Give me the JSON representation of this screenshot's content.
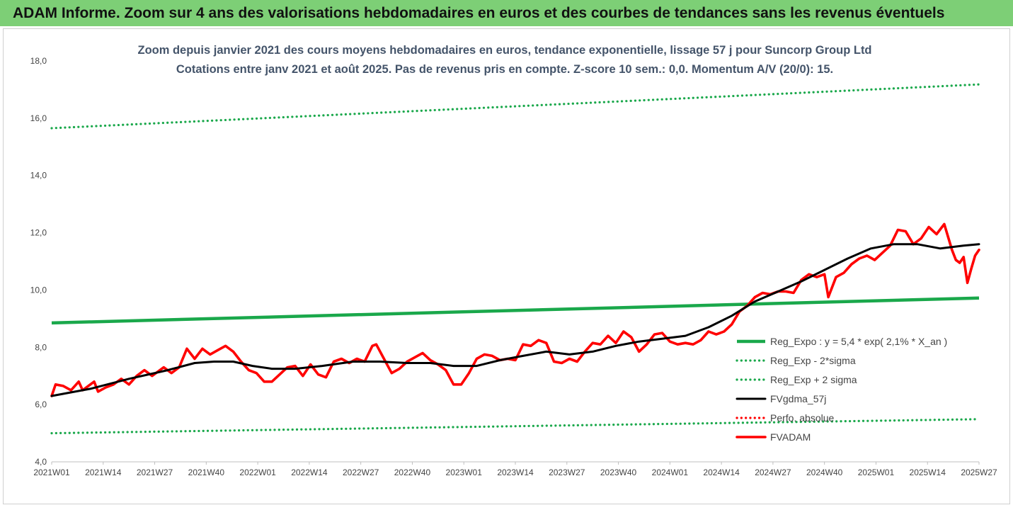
{
  "banner": {
    "text": "ADAM Informe. Zoom sur 4 ans des valorisations hebdomadaires en euros et des courbes de tendances sans les revenus éventuels"
  },
  "chart_data": {
    "type": "line",
    "title": "Zoom depuis janvier 2021 des cours moyens hebdomadaires en euros, tendance exponentielle, lissage 57 j pour Suncorp Group Ltd",
    "subtitle": "Cotations entre janv 2021 et août 2025.  Pas de revenus pris en compte. Z-score 10 sem.: 0,0. Momentum A/V (20/0): 15.",
    "xlabel": "",
    "ylabel": "",
    "ylim": [
      4.0,
      18.0
    ],
    "y_ticks": [
      "4,0",
      "6,0",
      "8,0",
      "10,0",
      "12,0",
      "14,0",
      "16,0",
      "18,0"
    ],
    "x_ticks": [
      "2021W01",
      "2021W14",
      "2021W27",
      "2021W40",
      "2022W01",
      "2022W14",
      "2022W27",
      "2022W40",
      "2023W01",
      "2023W14",
      "2023W27",
      "2023W40",
      "2024W01",
      "2024W14",
      "2024W27",
      "2024W40",
      "2025W01",
      "2025W14",
      "2025W27"
    ],
    "x_range_weeks": [
      0,
      240
    ],
    "grid": false,
    "legend_position": "right",
    "series": [
      {
        "name": "Reg_Expo : y = 5,4 * exp( 2,1% *  X_an )",
        "color": "#1aa84b",
        "style": "solid",
        "points": [
          [
            0,
            8.85
          ],
          [
            240,
            9.72
          ]
        ]
      },
      {
        "name": "Reg_Exp - 2*sigma",
        "color": "#1aa84b",
        "style": "dotted",
        "points": [
          [
            0,
            5.0
          ],
          [
            240,
            5.49
          ]
        ]
      },
      {
        "name": "Reg_Exp + 2 sigma",
        "color": "#1aa84b",
        "style": "dotted",
        "points": [
          [
            0,
            15.65
          ],
          [
            240,
            17.18
          ]
        ]
      },
      {
        "name": "FVgdma_57j",
        "color": "#000000",
        "style": "solid",
        "points": [
          [
            0,
            6.3
          ],
          [
            10,
            6.55
          ],
          [
            20,
            6.9
          ],
          [
            30,
            7.2
          ],
          [
            37,
            7.45
          ],
          [
            42,
            7.5
          ],
          [
            47,
            7.5
          ],
          [
            52,
            7.35
          ],
          [
            57,
            7.25
          ],
          [
            63,
            7.25
          ],
          [
            70,
            7.35
          ],
          [
            78,
            7.5
          ],
          [
            85,
            7.5
          ],
          [
            92,
            7.45
          ],
          [
            98,
            7.45
          ],
          [
            104,
            7.35
          ],
          [
            110,
            7.35
          ],
          [
            116,
            7.55
          ],
          [
            122,
            7.7
          ],
          [
            128,
            7.85
          ],
          [
            134,
            7.75
          ],
          [
            140,
            7.85
          ],
          [
            146,
            8.05
          ],
          [
            152,
            8.2
          ],
          [
            158,
            8.3
          ],
          [
            164,
            8.4
          ],
          [
            170,
            8.7
          ],
          [
            176,
            9.1
          ],
          [
            182,
            9.6
          ],
          [
            188,
            9.95
          ],
          [
            194,
            10.3
          ],
          [
            200,
            10.7
          ],
          [
            206,
            11.1
          ],
          [
            212,
            11.45
          ],
          [
            218,
            11.6
          ],
          [
            224,
            11.6
          ],
          [
            230,
            11.45
          ],
          [
            236,
            11.55
          ],
          [
            240,
            11.6
          ]
        ]
      },
      {
        "name": "Perfo. absolue",
        "color": "#ff0000",
        "style": "dotted",
        "points": []
      },
      {
        "name": "FVADAM",
        "color": "#ff0000",
        "style": "solid",
        "points": [
          [
            0,
            6.3
          ],
          [
            1,
            6.7
          ],
          [
            3,
            6.65
          ],
          [
            5,
            6.5
          ],
          [
            7,
            6.8
          ],
          [
            8,
            6.5
          ],
          [
            11,
            6.8
          ],
          [
            12,
            6.45
          ],
          [
            14,
            6.6
          ],
          [
            16,
            6.7
          ],
          [
            18,
            6.9
          ],
          [
            20,
            6.7
          ],
          [
            22,
            7.0
          ],
          [
            24,
            7.2
          ],
          [
            26,
            7.0
          ],
          [
            29,
            7.3
          ],
          [
            31,
            7.1
          ],
          [
            33,
            7.3
          ],
          [
            35,
            7.95
          ],
          [
            37,
            7.6
          ],
          [
            39,
            7.95
          ],
          [
            41,
            7.75
          ],
          [
            43,
            7.9
          ],
          [
            45,
            8.05
          ],
          [
            47,
            7.85
          ],
          [
            49,
            7.5
          ],
          [
            51,
            7.2
          ],
          [
            53,
            7.1
          ],
          [
            55,
            6.8
          ],
          [
            57,
            6.8
          ],
          [
            59,
            7.05
          ],
          [
            61,
            7.3
          ],
          [
            63,
            7.35
          ],
          [
            65,
            7.0
          ],
          [
            67,
            7.4
          ],
          [
            69,
            7.05
          ],
          [
            71,
            6.95
          ],
          [
            73,
            7.5
          ],
          [
            75,
            7.6
          ],
          [
            77,
            7.45
          ],
          [
            79,
            7.6
          ],
          [
            81,
            7.5
          ],
          [
            83,
            8.05
          ],
          [
            84,
            8.1
          ],
          [
            86,
            7.6
          ],
          [
            88,
            7.1
          ],
          [
            90,
            7.25
          ],
          [
            92,
            7.5
          ],
          [
            94,
            7.65
          ],
          [
            96,
            7.8
          ],
          [
            98,
            7.55
          ],
          [
            100,
            7.4
          ],
          [
            102,
            7.2
          ],
          [
            104,
            6.7
          ],
          [
            106,
            6.7
          ],
          [
            108,
            7.1
          ],
          [
            110,
            7.6
          ],
          [
            112,
            7.75
          ],
          [
            114,
            7.7
          ],
          [
            116,
            7.55
          ],
          [
            118,
            7.6
          ],
          [
            120,
            7.55
          ],
          [
            122,
            8.1
          ],
          [
            124,
            8.05
          ],
          [
            126,
            8.25
          ],
          [
            128,
            8.15
          ],
          [
            130,
            7.5
          ],
          [
            132,
            7.45
          ],
          [
            134,
            7.6
          ],
          [
            136,
            7.5
          ],
          [
            138,
            7.85
          ],
          [
            140,
            8.15
          ],
          [
            142,
            8.1
          ],
          [
            144,
            8.4
          ],
          [
            146,
            8.15
          ],
          [
            148,
            8.55
          ],
          [
            150,
            8.35
          ],
          [
            152,
            7.85
          ],
          [
            154,
            8.1
          ],
          [
            156,
            8.45
          ],
          [
            158,
            8.5
          ],
          [
            160,
            8.2
          ],
          [
            162,
            8.1
          ],
          [
            164,
            8.15
          ],
          [
            166,
            8.1
          ],
          [
            168,
            8.25
          ],
          [
            170,
            8.55
          ],
          [
            172,
            8.45
          ],
          [
            174,
            8.55
          ],
          [
            176,
            8.8
          ],
          [
            178,
            9.25
          ],
          [
            180,
            9.45
          ],
          [
            182,
            9.75
          ],
          [
            184,
            9.9
          ],
          [
            186,
            9.85
          ],
          [
            188,
            9.95
          ],
          [
            190,
            9.95
          ],
          [
            192,
            9.9
          ],
          [
            194,
            10.35
          ],
          [
            196,
            10.55
          ],
          [
            198,
            10.45
          ],
          [
            200,
            10.55
          ],
          [
            201,
            9.75
          ],
          [
            203,
            10.45
          ],
          [
            205,
            10.6
          ],
          [
            207,
            10.9
          ],
          [
            209,
            11.1
          ],
          [
            211,
            11.2
          ],
          [
            213,
            11.05
          ],
          [
            215,
            11.3
          ],
          [
            217,
            11.55
          ],
          [
            219,
            12.1
          ],
          [
            221,
            12.05
          ],
          [
            223,
            11.6
          ],
          [
            225,
            11.8
          ],
          [
            227,
            12.2
          ],
          [
            229,
            11.95
          ],
          [
            231,
            12.3
          ],
          [
            233,
            11.4
          ],
          [
            234,
            11.05
          ],
          [
            235,
            10.95
          ],
          [
            236,
            11.15
          ],
          [
            237,
            10.25
          ],
          [
            238,
            10.75
          ],
          [
            239,
            11.2
          ],
          [
            240,
            11.4
          ]
        ]
      }
    ]
  }
}
